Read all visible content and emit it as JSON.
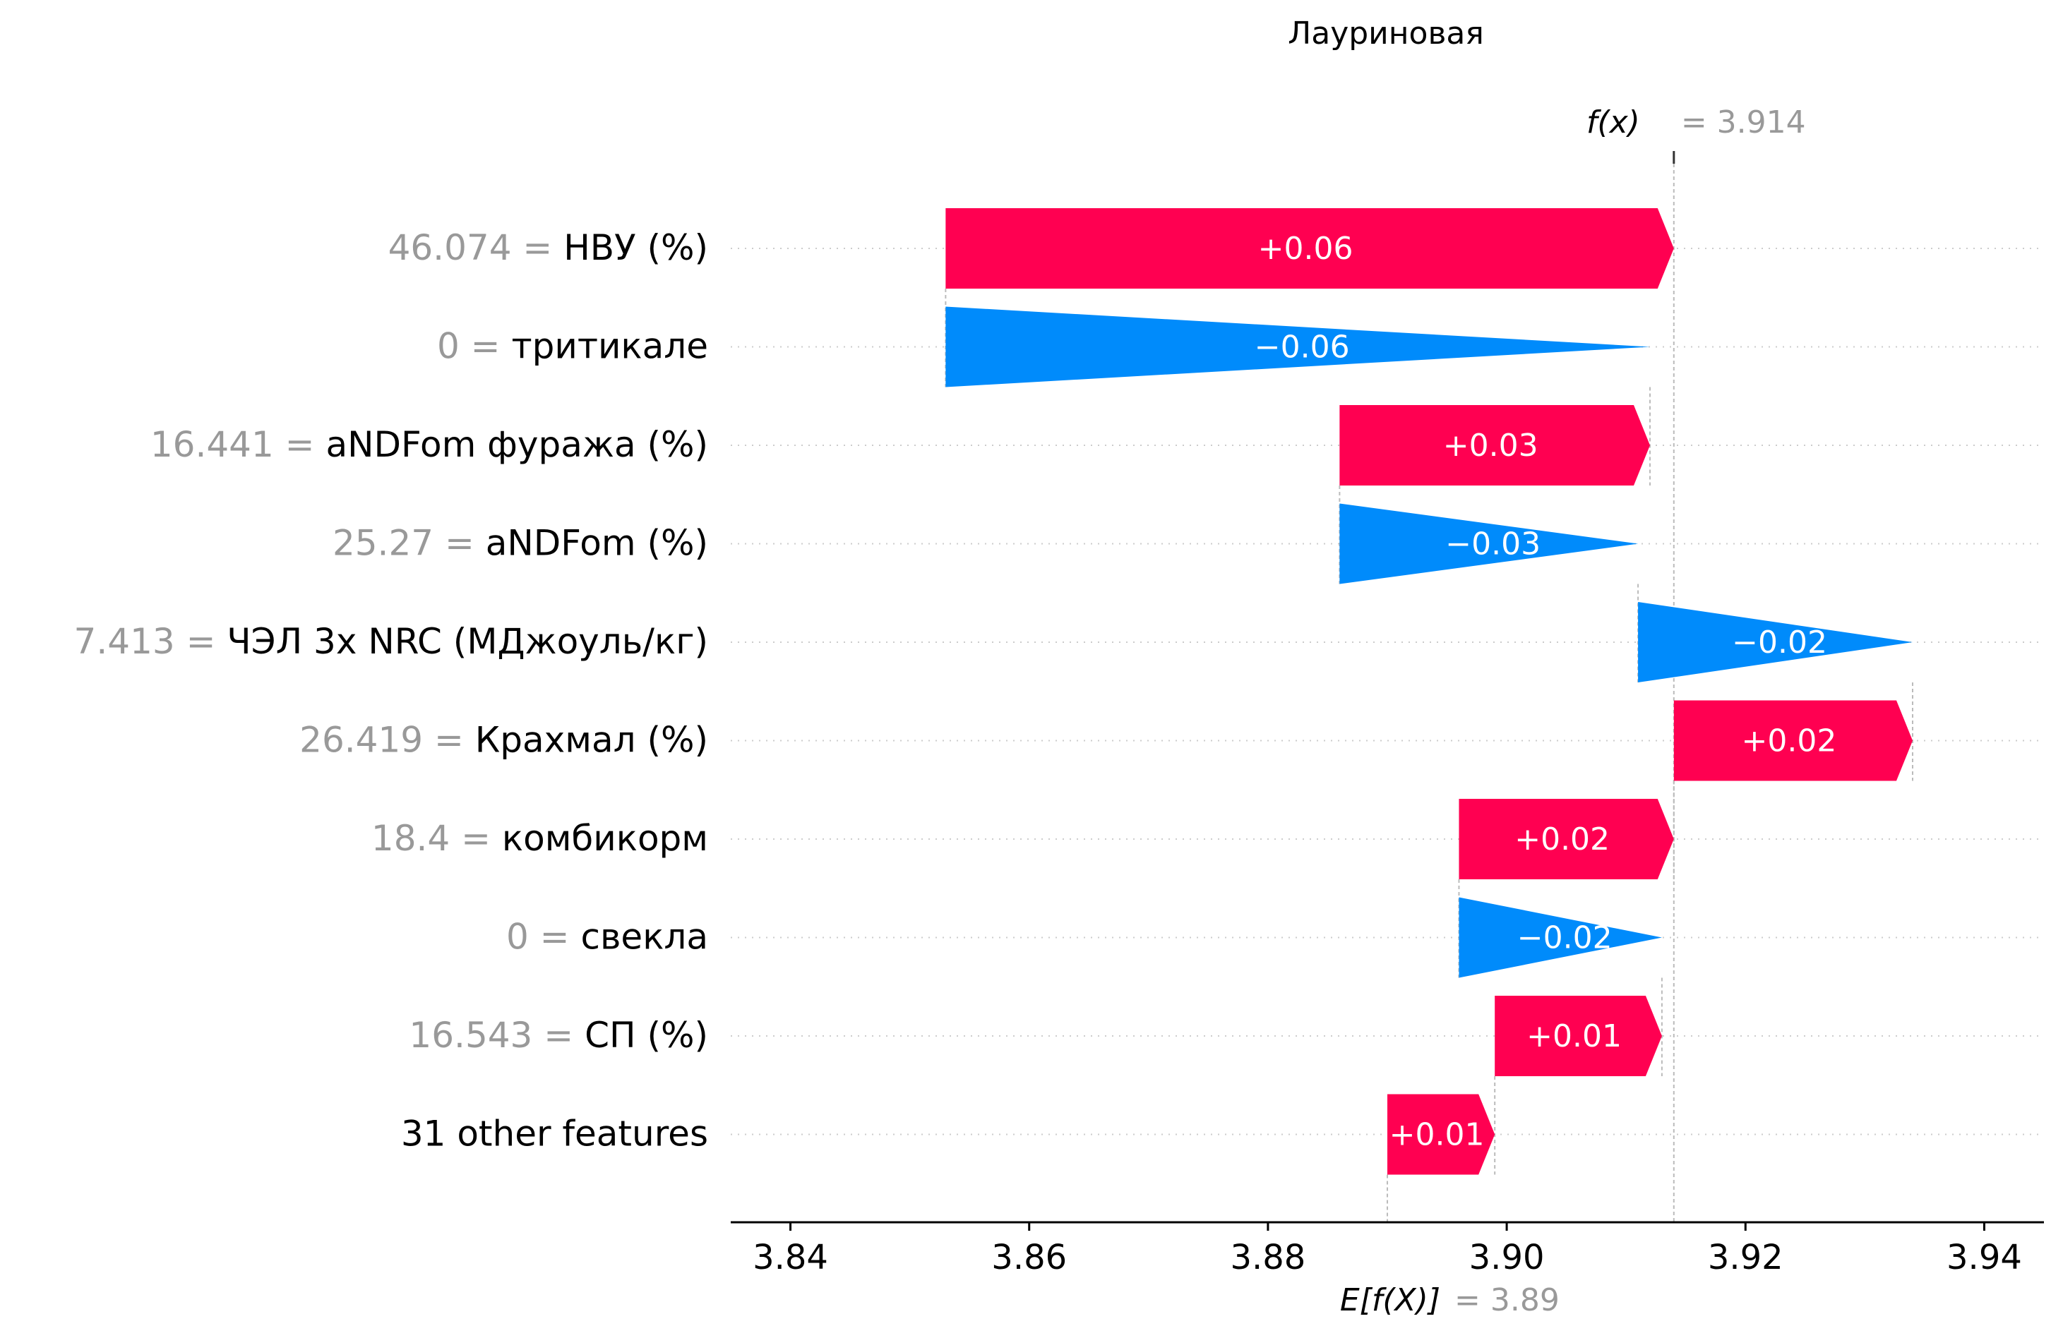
{
  "chart_data": {
    "type": "waterfall",
    "title": "Лауриновая",
    "xlim": [
      3.835,
      3.945
    ],
    "xticks": [
      "3.84",
      "3.86",
      "3.88",
      "3.90",
      "3.92",
      "3.94"
    ],
    "fx": {
      "label": "f(x)",
      "value": 3.914,
      "value_text": "= 3.914"
    },
    "base": {
      "label": "E[f(X)]",
      "value": 3.89,
      "value_text": "= 3.89"
    },
    "features": [
      {
        "value": "46.074 =",
        "name": "НВУ (%)",
        "shap": 0.061,
        "shap_text": "+0.06"
      },
      {
        "value": "0 =",
        "name": "тритикале",
        "shap": -0.059,
        "shap_text": "−0.06"
      },
      {
        "value": "16.441 =",
        "name": "aNDFom фуража (%)",
        "shap": 0.026,
        "shap_text": "+0.03"
      },
      {
        "value": "25.27 =",
        "name": "aNDFom (%)",
        "shap": -0.025,
        "shap_text": "−0.03"
      },
      {
        "value": "7.413 =",
        "name": "ЧЭЛ 3x NRC (МДжоуль/кг)",
        "shap": -0.023,
        "shap_text": "−0.02"
      },
      {
        "value": "26.419 =",
        "name": "Крахмал (%)",
        "shap": 0.02,
        "shap_text": "+0.02"
      },
      {
        "value": "18.4 =",
        "name": "комбикорм",
        "shap": 0.018,
        "shap_text": "+0.02"
      },
      {
        "value": "0 =",
        "name": "свекла",
        "shap": -0.017,
        "shap_text": "−0.02"
      },
      {
        "value": "16.543 =",
        "name": "СП (%)",
        "shap": 0.014,
        "shap_text": "+0.01"
      },
      {
        "value": "",
        "name": "31 other features",
        "shap": 0.009,
        "shap_text": "+0.01"
      }
    ],
    "colors": {
      "positive": "#ff0051",
      "negative": "#008bfb",
      "value_gray": "#999999",
      "text": "#000000"
    }
  }
}
